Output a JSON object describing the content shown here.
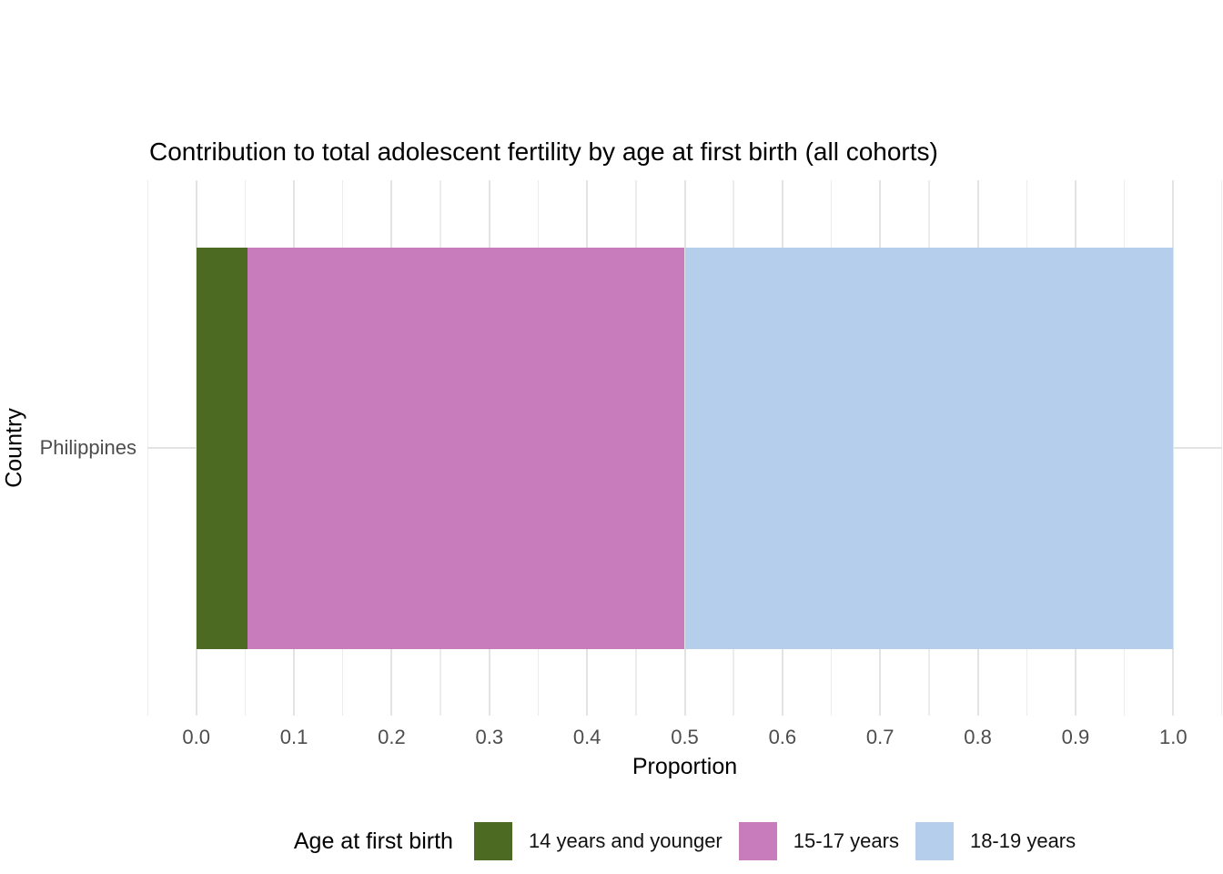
{
  "chart_data": {
    "type": "bar",
    "orientation": "horizontal",
    "stacked": true,
    "title": "Contribution to total adolescent fertility by age at first birth (all cohorts)",
    "xlabel": "Proportion",
    "ylabel": "Country",
    "categories": [
      "Philippines"
    ],
    "series": [
      {
        "name": "14 years and younger",
        "color": "#4d6a23",
        "values": [
          0.052
        ]
      },
      {
        "name": "15-17 years",
        "color": "#c87cbc",
        "values": [
          0.448
        ]
      },
      {
        "name": "18-19 years",
        "color": "#b5ceec",
        "values": [
          0.5
        ]
      }
    ],
    "xlim": [
      0.0,
      1.0
    ],
    "x_ticks": [
      0.0,
      0.1,
      0.2,
      0.3,
      0.4,
      0.5,
      0.6,
      0.7,
      0.8,
      0.9,
      1.0
    ],
    "x_tick_labels": [
      "0.0",
      "0.1",
      "0.2",
      "0.3",
      "0.4",
      "0.5",
      "0.6",
      "0.7",
      "0.8",
      "0.9",
      "1.0"
    ],
    "x_minor_ticks": [
      -0.05,
      0.05,
      0.15,
      0.25,
      0.35,
      0.45,
      0.55,
      0.65,
      0.75,
      0.85,
      0.95,
      1.05
    ],
    "grid": true,
    "legend_position": "bottom",
    "legend_title": "Age at first birth"
  },
  "colors": {
    "background": "#ffffff",
    "grid_major": "#e3e3e3",
    "grid_minor": "#ececec",
    "tick_text": "#4d4d4d",
    "title_text": "#000000"
  }
}
